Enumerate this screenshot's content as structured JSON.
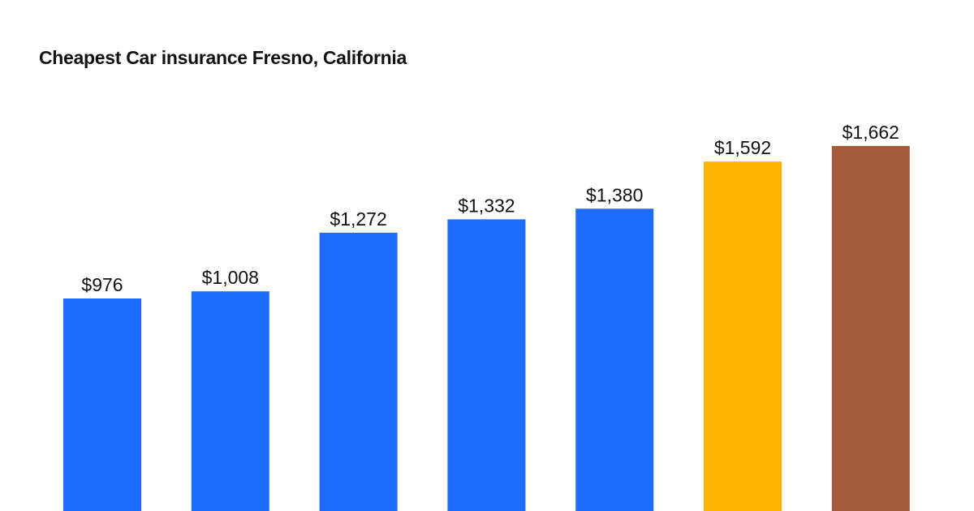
{
  "chart_data": {
    "type": "bar",
    "title": "Cheapest Car insurance Fresno, California",
    "xlabel": "",
    "ylabel": "",
    "grid": false,
    "ylim": [
      0,
      1800
    ],
    "values": [
      976,
      1008,
      1272,
      1332,
      1380,
      1592,
      1662
    ],
    "value_labels": [
      "$976",
      "$1,008",
      "$1,272",
      "$1,332",
      "$1,380",
      "$1,592",
      "$1,662"
    ],
    "colors": [
      "#1f6aff",
      "#1f6aff",
      "#1f6aff",
      "#1f6aff",
      "#1f6aff",
      "#f9b300",
      "#a65b3c"
    ]
  }
}
